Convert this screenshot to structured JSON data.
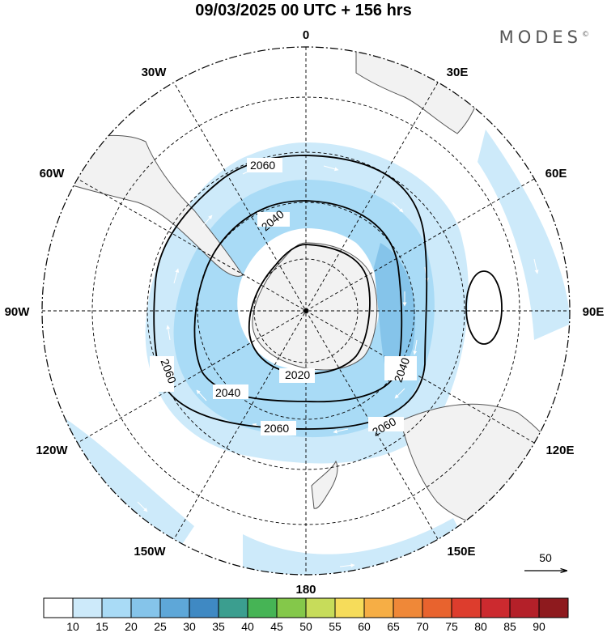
{
  "title": "09/03/2025  00 UTC  + 156 hrs",
  "brand": {
    "name": "MODES",
    "mark": "©"
  },
  "map": {
    "projection": "polar stereographic (south pole)",
    "graticule": "dashed",
    "longitude_labels": [
      "0",
      "30E",
      "60E",
      "90E",
      "120E",
      "150E",
      "180",
      "150W",
      "120W",
      "90W",
      "60W",
      "30W"
    ],
    "contour_labels": [
      "2060",
      "2040",
      "2020",
      "2040",
      "2060",
      "2060",
      "2040",
      "2060"
    ],
    "reference_vector": "50",
    "colors": {
      "land": "#f2f2f2",
      "coast": "#555555",
      "contour": "#000000",
      "shade_light": "#cdeafa",
      "shade_mid": "#a9dbf6",
      "shade_dark": "#85c4ea"
    }
  },
  "legend": {
    "ticks": [
      "10",
      "15",
      "20",
      "25",
      "30",
      "35",
      "40",
      "45",
      "50",
      "55",
      "60",
      "65",
      "70",
      "75",
      "80",
      "85",
      "90"
    ],
    "colors": [
      "#ffffff",
      "#cdeafa",
      "#a9dbf6",
      "#85c4ea",
      "#5ea7d8",
      "#3f89c3",
      "#3b9e8f",
      "#46b455",
      "#84c84a",
      "#c7dc5a",
      "#f6dc5a",
      "#f6ae45",
      "#ef8838",
      "#e8632e",
      "#dd3d2d",
      "#cc2a2f",
      "#b42029",
      "#8e1a1e"
    ]
  }
}
